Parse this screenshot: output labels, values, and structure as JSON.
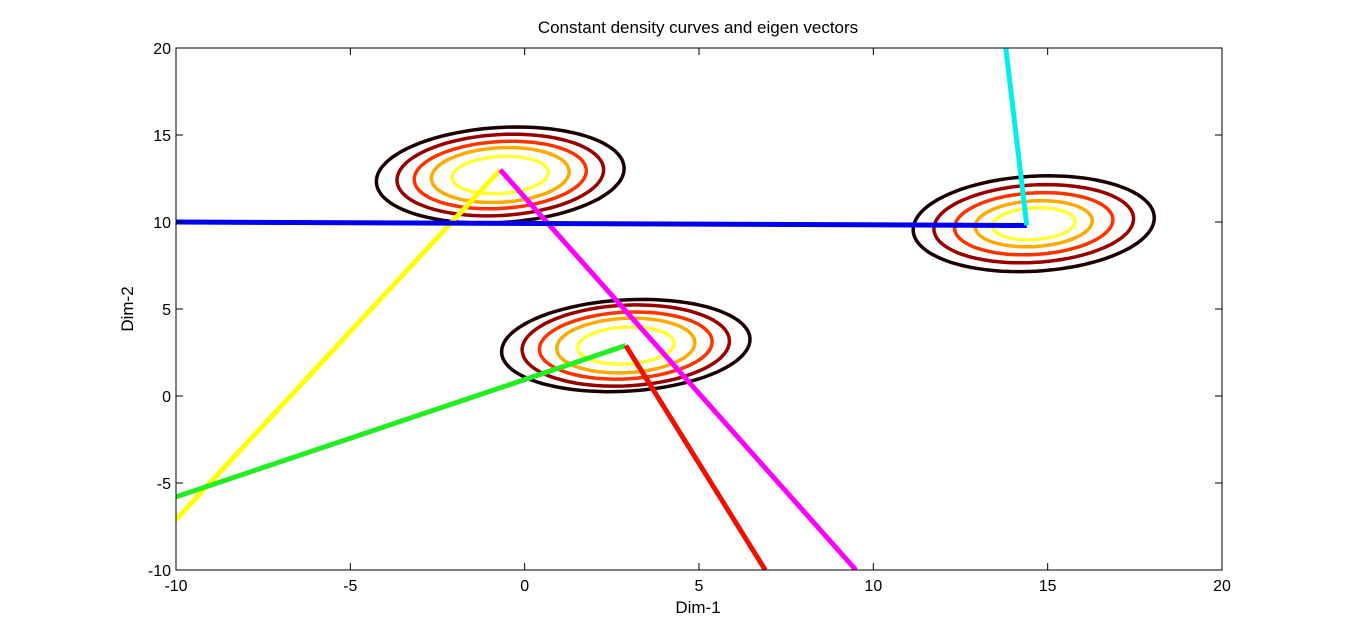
{
  "chart_data": {
    "type": "line",
    "title": "Constant density curves and eigen vectors",
    "xlabel": "Dim-1",
    "ylabel": "Dim-2",
    "xlim": [
      -10,
      20
    ],
    "ylim": [
      -10,
      20
    ],
    "xticks": [
      "-10",
      "-5",
      "0",
      "5",
      "10",
      "15",
      "20"
    ],
    "yticks": [
      "-10",
      "-5",
      "0",
      "5",
      "10",
      "15",
      "20"
    ],
    "grid": false,
    "clusters": [
      {
        "center": [
          -0.7,
          12.7
        ],
        "tilt_deg": 14,
        "contours": [
          {
            "rx": 1.4,
            "ry": 1.05,
            "color": "#ffff33"
          },
          {
            "rx": 2.0,
            "ry": 1.55,
            "color": "#ffaa00"
          },
          {
            "rx": 2.5,
            "ry": 1.9,
            "color": "#ff3300"
          },
          {
            "rx": 3.0,
            "ry": 2.3,
            "color": "#990000"
          },
          {
            "rx": 3.6,
            "ry": 2.7,
            "color": "#1a0000"
          }
        ]
      },
      {
        "center": [
          2.9,
          2.9
        ],
        "tilt_deg": 12,
        "contours": [
          {
            "rx": 1.4,
            "ry": 1.05,
            "color": "#ffff33"
          },
          {
            "rx": 2.0,
            "ry": 1.55,
            "color": "#ffaa00"
          },
          {
            "rx": 2.5,
            "ry": 1.9,
            "color": "#ff3300"
          },
          {
            "rx": 3.0,
            "ry": 2.3,
            "color": "#990000"
          },
          {
            "rx": 3.6,
            "ry": 2.6,
            "color": "#1a0000"
          }
        ]
      },
      {
        "center": [
          14.6,
          9.9
        ],
        "tilt_deg": 14,
        "contours": [
          {
            "rx": 1.2,
            "ry": 0.9,
            "color": "#ffff33"
          },
          {
            "rx": 1.7,
            "ry": 1.3,
            "color": "#ffaa00"
          },
          {
            "rx": 2.3,
            "ry": 1.75,
            "color": "#ff3300"
          },
          {
            "rx": 2.9,
            "ry": 2.2,
            "color": "#990000"
          },
          {
            "rx": 3.5,
            "ry": 2.7,
            "color": "#1a0000"
          }
        ]
      }
    ],
    "vectors": [
      {
        "from": [
          -0.7,
          13.0
        ],
        "to": [
          -10.0,
          -7.1
        ],
        "color": "#ffff00"
      },
      {
        "from": [
          -0.7,
          13.0
        ],
        "to": [
          9.5,
          -10.0
        ],
        "color": "#ff00ff"
      },
      {
        "from": [
          2.9,
          2.9
        ],
        "to": [
          -10.0,
          -5.8
        ],
        "color": "#22ee22"
      },
      {
        "from": [
          2.9,
          2.9
        ],
        "to": [
          6.9,
          -10.0
        ],
        "color": "#ee1100"
      },
      {
        "from": [
          14.4,
          9.8
        ],
        "to": [
          -10.0,
          10.0
        ],
        "color": "#0000ee"
      },
      {
        "from": [
          14.4,
          9.8
        ],
        "to": [
          13.8,
          20.0
        ],
        "color": "#00eeee"
      }
    ]
  }
}
